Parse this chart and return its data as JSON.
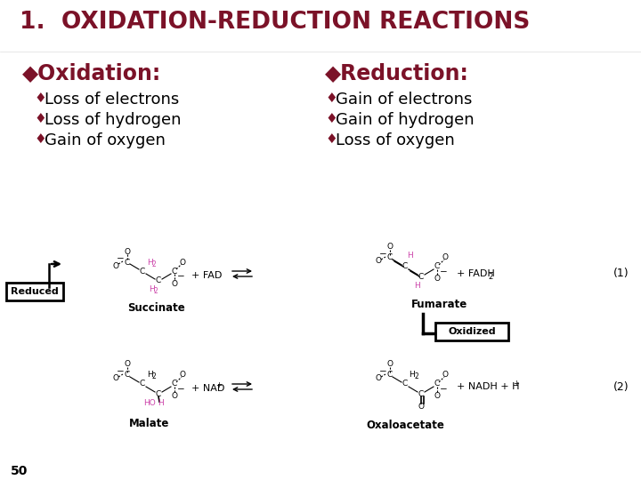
{
  "title": "1.  OXIDATION-REDUCTION REACTIONS",
  "title_color": "#7B1228",
  "title_fontsize": 19,
  "bg_color": "#FFFFFF",
  "oxidation_header": "◆Oxidation:",
  "reduction_header": "◆Reduction:",
  "header_color": "#7B1228",
  "header_fontsize": 17,
  "bullet_color": "#7B1228",
  "bullet_text_color": "#000000",
  "bullet_fontsize": 13,
  "oxidation_bullets": [
    "Loss of electrons",
    "Loss of hydrogen",
    "Gain of oxygen"
  ],
  "reduction_bullets": [
    "Gain of electrons",
    "Gain of hydrogen",
    "Loss of oxygen"
  ],
  "reduced_label": "Reduced",
  "oxidized_label": "Oxidized",
  "succinate_label": "Succinate",
  "fumarate_label": "Fumarate",
  "malate_label": "Malate",
  "oxaloacetate_label": "Oxaloacetate",
  "page_number": "50",
  "diagram_color": "#000000",
  "pink_color": "#CC44AA",
  "reaction1_label": "(1)",
  "reaction2_label": "(2)",
  "fad_text": "+ FAD",
  "fadh2_text": "+ FADH",
  "nad_text": "+ NAD",
  "nadh_text": "+ NADH + H"
}
